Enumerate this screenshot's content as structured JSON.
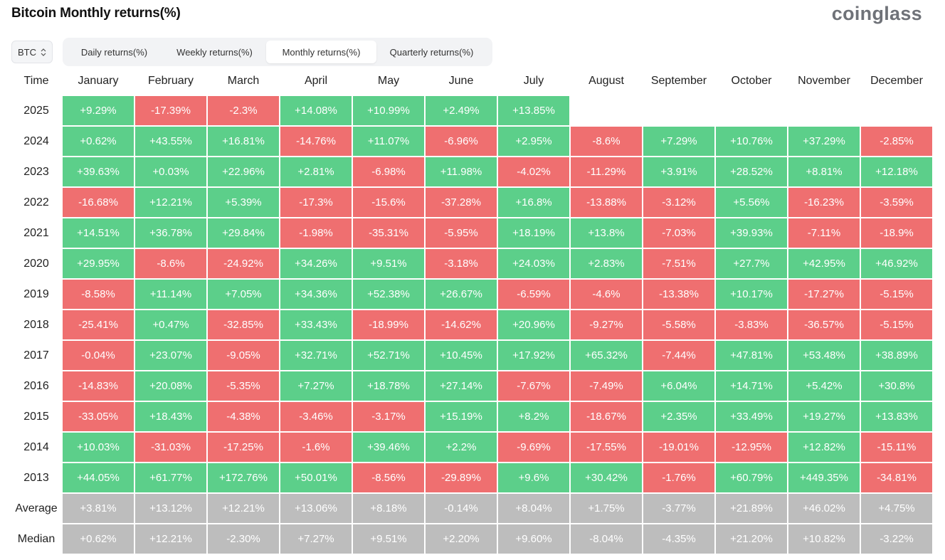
{
  "header": {
    "title": "Bitcoin Monthly returns(%)",
    "logo": "coinglass"
  },
  "asset_select": {
    "value": "BTC",
    "icon": "up-down-chevron-icon"
  },
  "tabs": [
    {
      "label": "Daily returns(%)",
      "active": false
    },
    {
      "label": "Weekly returns(%)",
      "active": false
    },
    {
      "label": "Monthly returns(%)",
      "active": true
    },
    {
      "label": "Quarterly returns(%)",
      "active": false
    }
  ],
  "colors": {
    "positive": "#5ccf8a",
    "negative": "#ef6f70",
    "stat": "#bdbdbd"
  },
  "table": {
    "corner_label": "Time",
    "columns": [
      "January",
      "February",
      "March",
      "April",
      "May",
      "June",
      "July",
      "August",
      "September",
      "October",
      "November",
      "December"
    ],
    "rows": [
      {
        "label": "2025",
        "values": [
          "+9.29%",
          "-17.39%",
          "-2.3%",
          "+14.08%",
          "+10.99%",
          "+2.49%",
          "+13.85%",
          "",
          "",
          "",
          "",
          ""
        ]
      },
      {
        "label": "2024",
        "values": [
          "+0.62%",
          "+43.55%",
          "+16.81%",
          "-14.76%",
          "+11.07%",
          "-6.96%",
          "+2.95%",
          "-8.6%",
          "+7.29%",
          "+10.76%",
          "+37.29%",
          "-2.85%"
        ]
      },
      {
        "label": "2023",
        "values": [
          "+39.63%",
          "+0.03%",
          "+22.96%",
          "+2.81%",
          "-6.98%",
          "+11.98%",
          "-4.02%",
          "-11.29%",
          "+3.91%",
          "+28.52%",
          "+8.81%",
          "+12.18%"
        ]
      },
      {
        "label": "2022",
        "values": [
          "-16.68%",
          "+12.21%",
          "+5.39%",
          "-17.3%",
          "-15.6%",
          "-37.28%",
          "+16.8%",
          "-13.88%",
          "-3.12%",
          "+5.56%",
          "-16.23%",
          "-3.59%"
        ]
      },
      {
        "label": "2021",
        "values": [
          "+14.51%",
          "+36.78%",
          "+29.84%",
          "-1.98%",
          "-35.31%",
          "-5.95%",
          "+18.19%",
          "+13.8%",
          "-7.03%",
          "+39.93%",
          "-7.11%",
          "-18.9%"
        ]
      },
      {
        "label": "2020",
        "values": [
          "+29.95%",
          "-8.6%",
          "-24.92%",
          "+34.26%",
          "+9.51%",
          "-3.18%",
          "+24.03%",
          "+2.83%",
          "-7.51%",
          "+27.7%",
          "+42.95%",
          "+46.92%"
        ]
      },
      {
        "label": "2019",
        "values": [
          "-8.58%",
          "+11.14%",
          "+7.05%",
          "+34.36%",
          "+52.38%",
          "+26.67%",
          "-6.59%",
          "-4.6%",
          "-13.38%",
          "+10.17%",
          "-17.27%",
          "-5.15%"
        ]
      },
      {
        "label": "2018",
        "values": [
          "-25.41%",
          "+0.47%",
          "-32.85%",
          "+33.43%",
          "-18.99%",
          "-14.62%",
          "+20.96%",
          "-9.27%",
          "-5.58%",
          "-3.83%",
          "-36.57%",
          "-5.15%"
        ]
      },
      {
        "label": "2017",
        "values": [
          "-0.04%",
          "+23.07%",
          "-9.05%",
          "+32.71%",
          "+52.71%",
          "+10.45%",
          "+17.92%",
          "+65.32%",
          "-7.44%",
          "+47.81%",
          "+53.48%",
          "+38.89%"
        ]
      },
      {
        "label": "2016",
        "values": [
          "-14.83%",
          "+20.08%",
          "-5.35%",
          "+7.27%",
          "+18.78%",
          "+27.14%",
          "-7.67%",
          "-7.49%",
          "+6.04%",
          "+14.71%",
          "+5.42%",
          "+30.8%"
        ]
      },
      {
        "label": "2015",
        "values": [
          "-33.05%",
          "+18.43%",
          "-4.38%",
          "-3.46%",
          "-3.17%",
          "+15.19%",
          "+8.2%",
          "-18.67%",
          "+2.35%",
          "+33.49%",
          "+19.27%",
          "+13.83%"
        ]
      },
      {
        "label": "2014",
        "values": [
          "+10.03%",
          "-31.03%",
          "-17.25%",
          "-1.6%",
          "+39.46%",
          "+2.2%",
          "-9.69%",
          "-17.55%",
          "-19.01%",
          "-12.95%",
          "+12.82%",
          "-15.11%"
        ]
      },
      {
        "label": "2013",
        "values": [
          "+44.05%",
          "+61.77%",
          "+172.76%",
          "+50.01%",
          "-8.56%",
          "-29.89%",
          "+9.6%",
          "+30.42%",
          "-1.76%",
          "+60.79%",
          "+449.35%",
          "-34.81%"
        ]
      }
    ],
    "stats": [
      {
        "label": "Average",
        "values": [
          "+3.81%",
          "+13.12%",
          "+12.21%",
          "+13.06%",
          "+8.18%",
          "-0.14%",
          "+8.04%",
          "+1.75%",
          "-3.77%",
          "+21.89%",
          "+46.02%",
          "+4.75%"
        ]
      },
      {
        "label": "Median",
        "values": [
          "+0.62%",
          "+12.21%",
          "-2.30%",
          "+7.27%",
          "+9.51%",
          "+2.20%",
          "+9.60%",
          "-8.04%",
          "-4.35%",
          "+21.20%",
          "+10.82%",
          "-3.22%"
        ]
      }
    ]
  }
}
